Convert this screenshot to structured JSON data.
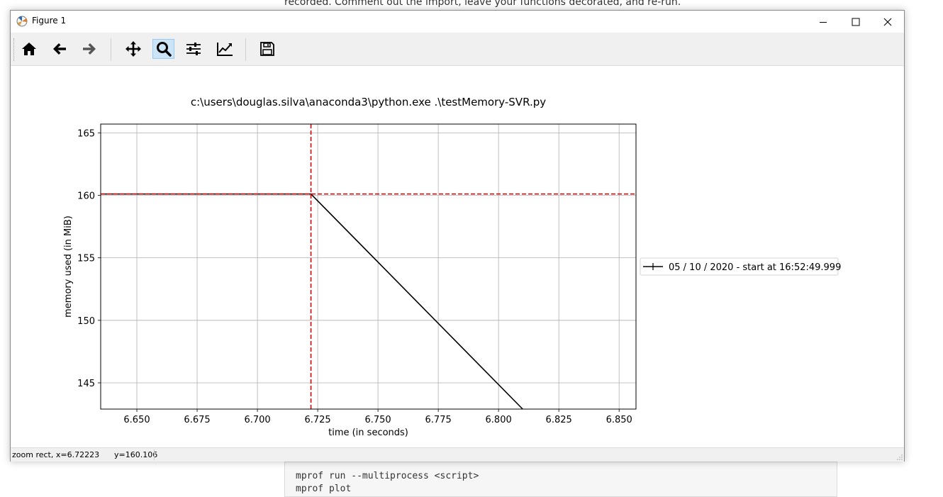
{
  "background": {
    "top_text": "recorded. Comment out the import, leave your functions decorated, and re-run.",
    "code_lines": [
      "mprof run --multiprocess <script>",
      "mprof plot"
    ]
  },
  "window": {
    "title": "Figure 1",
    "controls": {
      "minimize": "minimize-icon",
      "maximize": "maximize-icon",
      "close": "close-icon"
    }
  },
  "toolbar": {
    "tools": [
      {
        "name": "home",
        "icon": "home-icon"
      },
      {
        "name": "back",
        "icon": "arrow-left-icon"
      },
      {
        "name": "forward",
        "icon": "arrow-right-icon"
      },
      {
        "name": "pan",
        "icon": "move-icon"
      },
      {
        "name": "zoom",
        "icon": "magnifier-icon",
        "active": true
      },
      {
        "name": "configure-subplots",
        "icon": "sliders-icon"
      },
      {
        "name": "edit-axis",
        "icon": "line-chart-icon"
      },
      {
        "name": "save",
        "icon": "floppy-disk-icon"
      }
    ]
  },
  "statusbar": {
    "text": "zoom rect, x=6.72223      y=160.106"
  },
  "chart_data": {
    "type": "line",
    "title": "c:\\users\\douglas.silva\\anaconda3\\python.exe .\\testMemory-SVR.py",
    "xlabel": "time (in seconds)",
    "ylabel": "memory used (in MiB)",
    "xlim": [
      6.635,
      6.857
    ],
    "ylim": [
      142.9,
      165.7
    ],
    "xticks": [
      "6.650",
      "6.675",
      "6.700",
      "6.725",
      "6.750",
      "6.775",
      "6.800",
      "6.825",
      "6.850"
    ],
    "yticks": [
      "145",
      "150",
      "155",
      "160",
      "165"
    ],
    "grid": true,
    "legend_placement": "right, outside plot",
    "series": [
      {
        "name": "05 / 10 / 2020 - start at 16:52:49.999",
        "color": "#000000",
        "x": [
          6.635,
          6.7222,
          6.81
        ],
        "y": [
          160.106,
          160.106,
          142.9
        ]
      }
    ],
    "marker_lines": {
      "color": "#e00000",
      "style": "dashed",
      "x": 6.7222,
      "y": 160.106
    }
  }
}
